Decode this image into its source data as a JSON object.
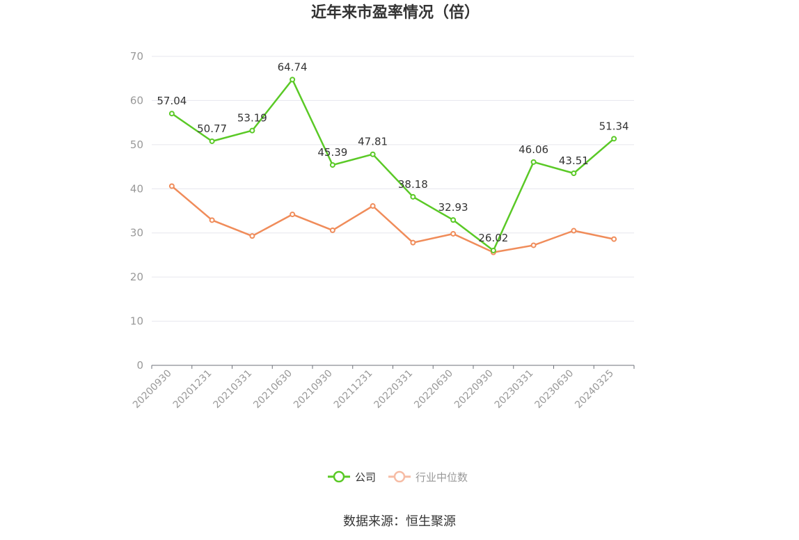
{
  "chart_data": {
    "type": "line",
    "title": "近年来市盈率情况（倍）",
    "categories": [
      "20200930",
      "20201231",
      "20210331",
      "20210630",
      "20210930",
      "20211231",
      "20220331",
      "20220630",
      "20220930",
      "20230331",
      "20230630",
      "20240325"
    ],
    "series": [
      {
        "name": "公司",
        "color": "#5ac926",
        "values": [
          57.04,
          50.77,
          53.19,
          64.74,
          45.39,
          47.81,
          38.18,
          32.93,
          26.02,
          46.06,
          43.51,
          51.34
        ],
        "data_labels": [
          "57.04",
          "50.77",
          "53.19",
          "64.74",
          "45.39",
          "47.81",
          "38.18",
          "32.93",
          "26.02",
          "46.06",
          "43.51",
          "51.34"
        ]
      },
      {
        "name": "行业中位数",
        "color": "#f08c5a",
        "values": [
          40.6,
          32.9,
          29.3,
          34.2,
          30.6,
          36.1,
          27.8,
          29.8,
          25.6,
          27.2,
          30.5,
          28.6
        ]
      }
    ],
    "yticks": [
      "0",
      "10",
      "20",
      "30",
      "40",
      "50",
      "60",
      "70"
    ],
    "ylim": [
      0,
      70
    ],
    "grid": true,
    "legend_position": "bottom"
  },
  "source_text": "数据来源：恒生聚源"
}
